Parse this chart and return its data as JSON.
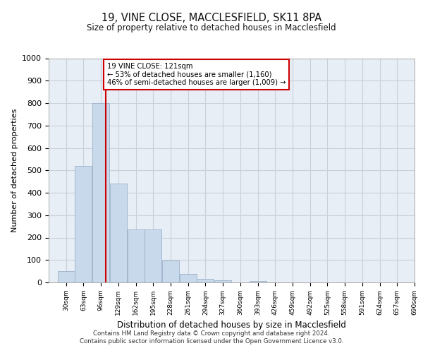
{
  "title1": "19, VINE CLOSE, MACCLESFIELD, SK11 8PA",
  "title2": "Size of property relative to detached houses in Macclesfield",
  "xlabel": "Distribution of detached houses by size in Macclesfield",
  "ylabel": "Number of detached properties",
  "bin_edges": [
    30,
    63,
    96,
    129,
    162,
    195,
    228,
    261,
    294,
    327,
    360,
    393,
    426,
    459,
    492,
    525,
    558,
    591,
    624,
    657,
    690
  ],
  "bar_heights": [
    50,
    520,
    800,
    440,
    235,
    235,
    97,
    37,
    15,
    10,
    0,
    7,
    0,
    0,
    0,
    0,
    0,
    0,
    0,
    0
  ],
  "bar_color": "#c9d9ec",
  "bar_edgecolor": "#9ab0c8",
  "grid_color": "#c8d0db",
  "background_color": "#e8eef5",
  "vline_x": 121,
  "vline_color": "#cc0000",
  "annotation_text": "19 VINE CLOSE: 121sqm\n← 53% of detached houses are smaller (1,160)\n46% of semi-detached houses are larger (1,009) →",
  "annotation_box_color": "#ffffff",
  "annotation_box_edgecolor": "#cc0000",
  "ylim": [
    0,
    1000
  ],
  "yticks": [
    0,
    100,
    200,
    300,
    400,
    500,
    600,
    700,
    800,
    900,
    1000
  ],
  "tick_labels": [
    "30sqm",
    "63sqm",
    "96sqm",
    "129sqm",
    "162sqm",
    "195sqm",
    "228sqm",
    "261sqm",
    "294sqm",
    "327sqm",
    "360sqm",
    "393sqm",
    "426sqm",
    "459sqm",
    "492sqm",
    "525sqm",
    "558sqm",
    "591sqm",
    "624sqm",
    "657sqm",
    "690sqm"
  ],
  "footer1": "Contains HM Land Registry data © Crown copyright and database right 2024.",
  "footer2": "Contains public sector information licensed under the Open Government Licence v3.0."
}
